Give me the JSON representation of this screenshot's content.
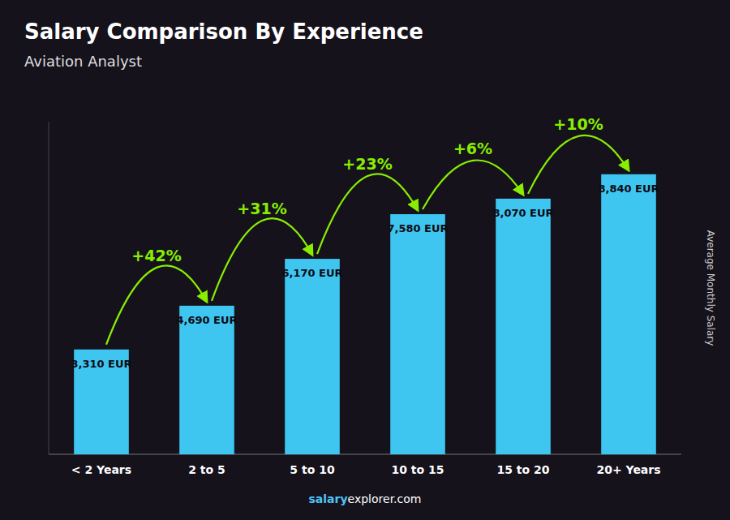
{
  "chart_data": {
    "type": "bar",
    "title": "Salary Comparison By Experience",
    "subtitle": "Aviation Analyst",
    "ylabel": "Average Monthly Salary",
    "categories": [
      "< 2 Years",
      "2 to 5",
      "5 to 10",
      "10 to 15",
      "15 to 20",
      "20+ Years"
    ],
    "values": [
      3310,
      4690,
      6170,
      7580,
      8070,
      8840
    ],
    "value_labels": [
      "3,310 EUR",
      "4,690 EUR",
      "6,170 EUR",
      "7,580 EUR",
      "8,070 EUR",
      "8,840 EUR"
    ],
    "data_labels": true,
    "color": "#3ec6f0",
    "ylim": [
      0,
      10500
    ],
    "grid": false,
    "tick_labels": "x",
    "annotations": [
      {
        "text": "+42%",
        "color": "#88ee00"
      },
      {
        "text": "+31%",
        "color": "#88ee00"
      },
      {
        "text": "+23%",
        "color": "#88ee00"
      },
      {
        "text": "+6%",
        "color": "#88ee00"
      },
      {
        "text": "+10%",
        "color": "#88ee00"
      }
    ],
    "footer": [
      {
        "text": "salary",
        "color": "#4fc3f7"
      },
      {
        "text": "explorer.com",
        "color": "#ffffff"
      }
    ]
  }
}
